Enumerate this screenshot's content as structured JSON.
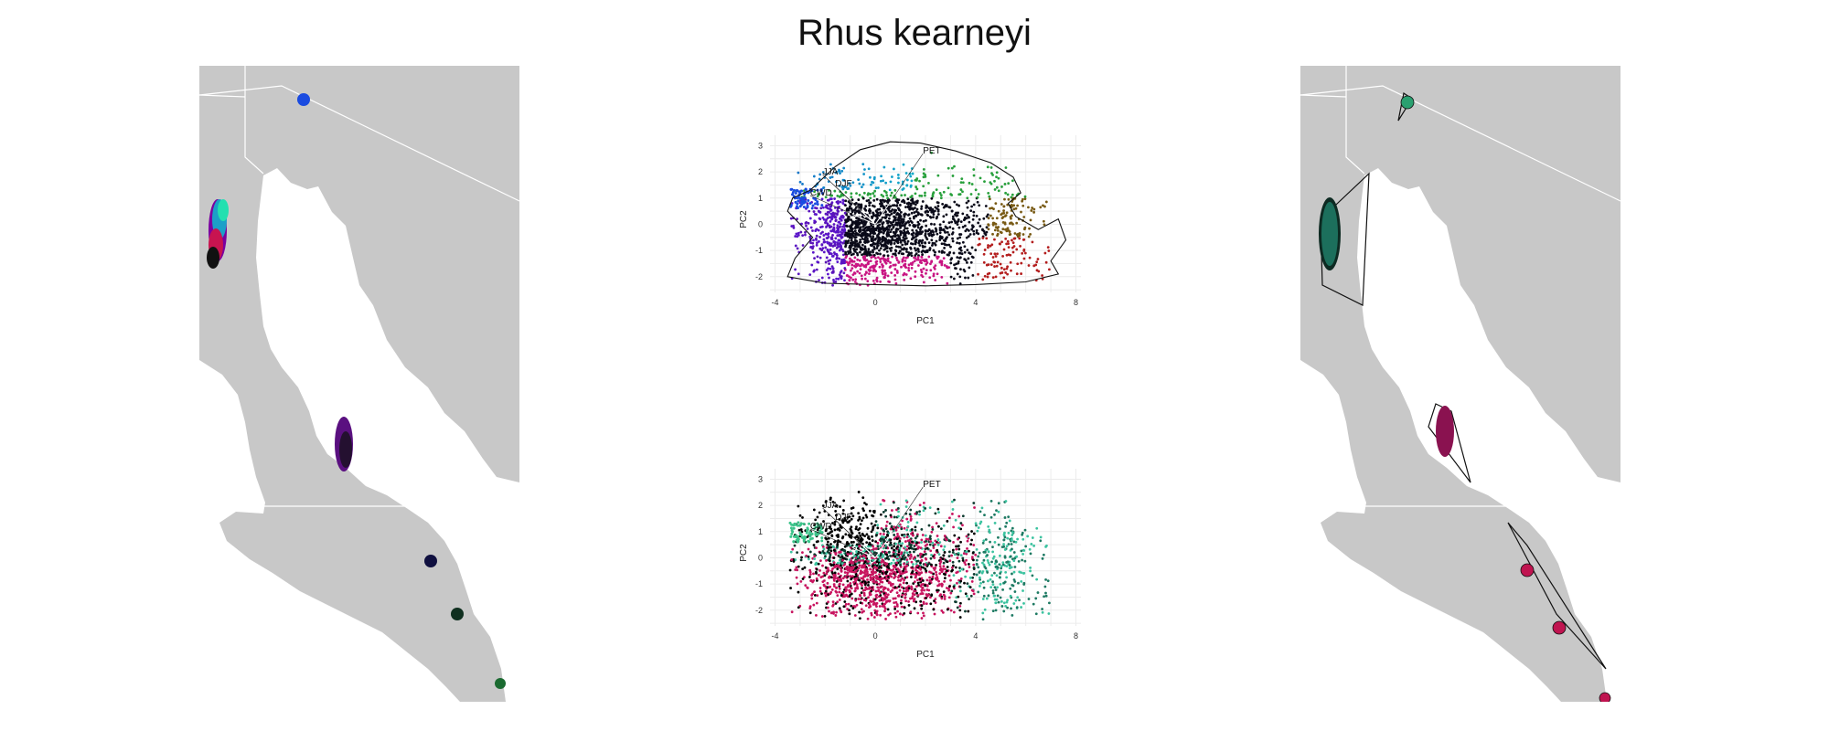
{
  "title": "Rhus kearneyi",
  "colors": {
    "land": "#c8c8c8",
    "water": "#ffffff",
    "grid": "#ececec"
  },
  "chart_data": [
    {
      "type": "scatter",
      "panel": "pca-top",
      "xlabel": "PC1",
      "ylabel": "PC2",
      "xlim": [
        -4.2,
        8.2
      ],
      "ylim": [
        -2.6,
        3.4
      ],
      "xticks": [
        -4,
        0,
        4,
        8
      ],
      "yticks": [
        -2,
        -1,
        0,
        1,
        2,
        3
      ],
      "grid": true,
      "vectors": [
        {
          "label": "JJA",
          "x": -2.1,
          "y": 1.9
        },
        {
          "label": "DJF",
          "x": -1.6,
          "y": 1.45
        },
        {
          "label": "CWD",
          "x": -2.6,
          "y": 1.1
        },
        {
          "label": "PET",
          "x": 1.9,
          "y": 2.7
        }
      ],
      "hull": [
        [
          -3.3,
          1.0
        ],
        [
          -2.6,
          1.3
        ],
        [
          -1.6,
          2.2
        ],
        [
          -0.6,
          2.85
        ],
        [
          0.6,
          3.15
        ],
        [
          1.8,
          3.1
        ],
        [
          3.2,
          2.8
        ],
        [
          4.6,
          2.35
        ],
        [
          5.5,
          1.8
        ],
        [
          5.8,
          1.2
        ],
        [
          5.3,
          0.8
        ],
        [
          5.6,
          0.3
        ],
        [
          6.5,
          -0.2
        ],
        [
          7.3,
          0.2
        ],
        [
          7.6,
          -0.6
        ],
        [
          7.0,
          -1.4
        ],
        [
          7.3,
          -1.9
        ],
        [
          6.0,
          -2.2
        ],
        [
          4.0,
          -2.3
        ],
        [
          2.0,
          -2.35
        ],
        [
          0.0,
          -2.3
        ],
        [
          -2.0,
          -2.25
        ],
        [
          -3.5,
          -2.0
        ],
        [
          -3.2,
          -1.3
        ],
        [
          -2.5,
          -0.5
        ],
        [
          -3.0,
          0.0
        ],
        [
          -3.5,
          0.5
        ]
      ]
    },
    {
      "type": "scatter",
      "panel": "pca-bottom",
      "xlabel": "PC1",
      "ylabel": "PC2",
      "xlim": [
        -4.2,
        8.2
      ],
      "ylim": [
        -2.6,
        3.4
      ],
      "xticks": [
        -4,
        0,
        4,
        8
      ],
      "yticks": [
        -2,
        -1,
        0,
        1,
        2,
        3
      ],
      "grid": true,
      "vectors": [
        {
          "label": "JJA",
          "x": -2.1,
          "y": 1.9
        },
        {
          "label": "DJF",
          "x": -1.6,
          "y": 1.45
        },
        {
          "label": "CWD",
          "x": -2.6,
          "y": 1.1
        },
        {
          "label": "PET",
          "x": 1.9,
          "y": 2.7
        }
      ],
      "series_colors": [
        "#000000",
        "#c8145f",
        "#1e7a63",
        "#3cc3a0",
        "#0b3a2e"
      ]
    }
  ]
}
